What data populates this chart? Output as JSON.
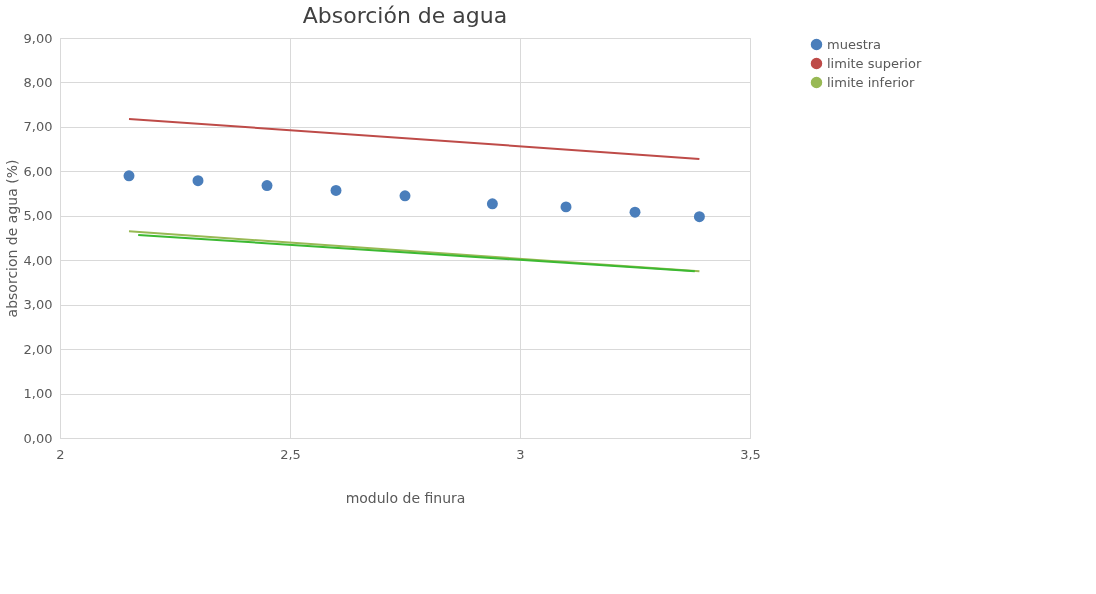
{
  "chart_data": {
    "type": "scatter",
    "title": "Absorción de agua",
    "xlabel": "modulo de finura",
    "ylabel": "absorcion de agua (%)",
    "xlim": [
      2,
      3.5
    ],
    "xticks": [
      {
        "value": 2,
        "label": "2"
      },
      {
        "value": 2.5,
        "label": "2,5"
      },
      {
        "value": 3,
        "label": "3"
      },
      {
        "value": 3.5,
        "label": "3,5"
      }
    ],
    "ylim": [
      0,
      9
    ],
    "yticks": [
      {
        "value": 0,
        "label": "0,00"
      },
      {
        "value": 1,
        "label": "1,00"
      },
      {
        "value": 2,
        "label": "2,00"
      },
      {
        "value": 3,
        "label": "3,00"
      },
      {
        "value": 4,
        "label": "4,00"
      },
      {
        "value": 5,
        "label": "5,00"
      },
      {
        "value": 6,
        "label": "6,00"
      },
      {
        "value": 7,
        "label": "7,00"
      },
      {
        "value": 8,
        "label": "8,00"
      },
      {
        "value": 9,
        "label": "9,00"
      }
    ],
    "grid": true,
    "legend": "right",
    "series": [
      {
        "name": "muestra",
        "color": "#4a7ebb",
        "marker": "circle",
        "x": [
          2.15,
          2.3,
          2.45,
          2.6,
          2.75,
          2.94,
          3.1,
          3.25,
          3.39
        ],
        "values": [
          5.9,
          5.79,
          5.68,
          5.57,
          5.45,
          5.27,
          5.2,
          5.08,
          4.98
        ]
      },
      {
        "name": "limite superior",
        "color": "#be4b48",
        "type": "line",
        "x": [
          2.15,
          3.39
        ],
        "values": [
          7.18,
          6.28
        ]
      },
      {
        "name": "limite inferior",
        "color": "#98b954",
        "type": "line",
        "x": [
          2.15,
          3.39
        ],
        "values": [
          4.65,
          3.75
        ]
      },
      {
        "color": "#3cb932",
        "type": "line",
        "x": [
          2.17,
          3.38
        ],
        "values": [
          4.57,
          3.75
        ]
      }
    ]
  }
}
